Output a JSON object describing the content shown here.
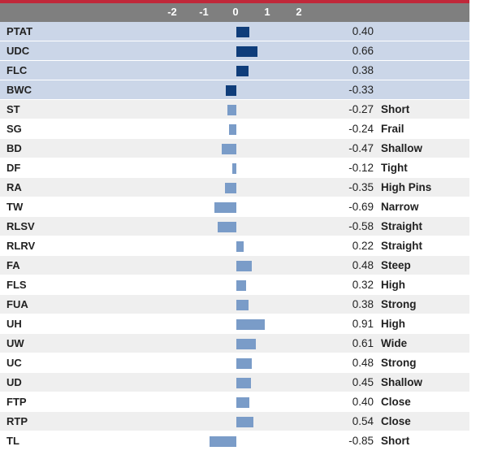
{
  "colors": {
    "stripe": "#c0283a",
    "header_bg": "#7f7f7f",
    "highlight_row_bg": "#cbd6e8",
    "zebra_bg": "#efefef",
    "bar_highlight": "#0f3d7a",
    "bar_normal": "#7a9cc8"
  },
  "chart_data": {
    "type": "bar",
    "orientation": "horizontal",
    "xlim": [
      -2.5,
      2.7
    ],
    "x_ticks": [
      "-2",
      "-1",
      "0",
      "1",
      "2"
    ],
    "grid": true,
    "rows": [
      {
        "label": "PTAT",
        "value": 0.4,
        "value_text": "0.40",
        "desc": "",
        "highlight": true
      },
      {
        "label": "UDC",
        "value": 0.66,
        "value_text": "0.66",
        "desc": "",
        "highlight": true
      },
      {
        "label": "FLC",
        "value": 0.38,
        "value_text": "0.38",
        "desc": "",
        "highlight": true
      },
      {
        "label": "BWC",
        "value": -0.33,
        "value_text": "-0.33",
        "desc": "",
        "highlight": true
      },
      {
        "label": "ST",
        "value": -0.27,
        "value_text": "-0.27",
        "desc": "Short",
        "highlight": false
      },
      {
        "label": "SG",
        "value": -0.24,
        "value_text": "-0.24",
        "desc": "Frail",
        "highlight": false
      },
      {
        "label": "BD",
        "value": -0.47,
        "value_text": "-0.47",
        "desc": "Shallow",
        "highlight": false
      },
      {
        "label": "DF",
        "value": -0.12,
        "value_text": "-0.12",
        "desc": "Tight",
        "highlight": false
      },
      {
        "label": "RA",
        "value": -0.35,
        "value_text": "-0.35",
        "desc": "High Pins",
        "highlight": false
      },
      {
        "label": "TW",
        "value": -0.69,
        "value_text": "-0.69",
        "desc": "Narrow",
        "highlight": false
      },
      {
        "label": "RLSV",
        "value": -0.58,
        "value_text": "-0.58",
        "desc": "Straight",
        "highlight": false
      },
      {
        "label": "RLRV",
        "value": 0.22,
        "value_text": "0.22",
        "desc": "Straight",
        "highlight": false
      },
      {
        "label": "FA",
        "value": 0.48,
        "value_text": "0.48",
        "desc": "Steep",
        "highlight": false
      },
      {
        "label": "FLS",
        "value": 0.32,
        "value_text": "0.32",
        "desc": "High",
        "highlight": false
      },
      {
        "label": "FUA",
        "value": 0.38,
        "value_text": "0.38",
        "desc": "Strong",
        "highlight": false
      },
      {
        "label": "UH",
        "value": 0.91,
        "value_text": "0.91",
        "desc": "High",
        "highlight": false
      },
      {
        "label": "UW",
        "value": 0.61,
        "value_text": "0.61",
        "desc": "Wide",
        "highlight": false
      },
      {
        "label": "UC",
        "value": 0.48,
        "value_text": "0.48",
        "desc": "Strong",
        "highlight": false
      },
      {
        "label": "UD",
        "value": 0.45,
        "value_text": "0.45",
        "desc": "Shallow",
        "highlight": false
      },
      {
        "label": "FTP",
        "value": 0.4,
        "value_text": "0.40",
        "desc": "Close",
        "highlight": false
      },
      {
        "label": "RTP",
        "value": 0.54,
        "value_text": "0.54",
        "desc": "Close",
        "highlight": false
      },
      {
        "label": "TL",
        "value": -0.85,
        "value_text": "-0.85",
        "desc": "Short",
        "highlight": false
      }
    ]
  }
}
